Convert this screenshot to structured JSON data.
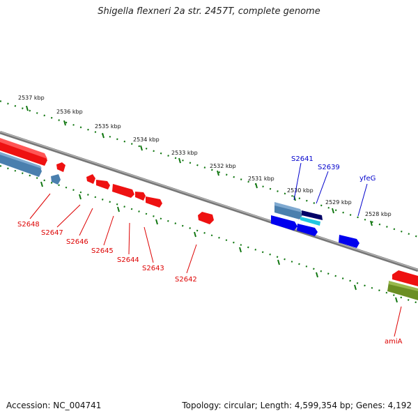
{
  "map": {
    "title": "Shigella flexneri 2a str. 2457T, complete genome",
    "accession": "Accession: NC_004741",
    "summary": "Topology: circular; Length: 4,599,354 bp; Genes: 4,192"
  },
  "ruler": {
    "labels": [
      "2537 kbp",
      "2536 kbp",
      "2535 kbp",
      "2534 kbp",
      "2533 kbp",
      "2532 kbp",
      "2531 kbp",
      "2530 kbp",
      "2529 kbp",
      "2528 kbp"
    ]
  },
  "genes": [
    {
      "label": "S2648",
      "color": "#dd0000"
    },
    {
      "label": "S2647",
      "color": "#dd0000"
    },
    {
      "label": "S2646",
      "color": "#dd0000"
    },
    {
      "label": "S2645",
      "color": "#dd0000"
    },
    {
      "label": "S2644",
      "color": "#dd0000"
    },
    {
      "label": "S2643",
      "color": "#dd0000"
    },
    {
      "label": "S2642",
      "color": "#dd0000"
    },
    {
      "label": "S2641",
      "color": "#0000cc"
    },
    {
      "label": "S2639",
      "color": "#0000cc"
    },
    {
      "label": "yfeG",
      "color": "#0000cc"
    },
    {
      "label": "amiA",
      "color": "#dd0000"
    }
  ]
}
